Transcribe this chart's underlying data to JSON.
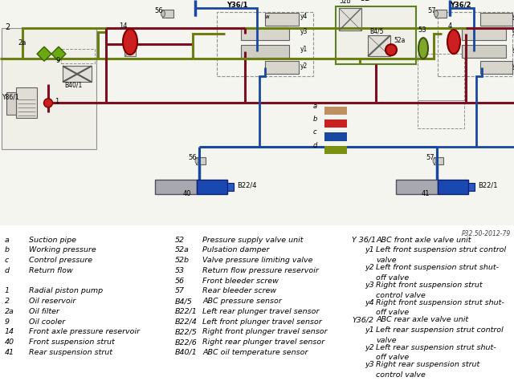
{
  "bg_color": "#ffffff",
  "title_ref": "P32.50-2012-79",
  "legend_col1_codes": [
    "a",
    "b",
    "c",
    "d",
    "",
    "1",
    "2",
    "2a",
    "9",
    "14",
    "40",
    "41"
  ],
  "legend_col1_descs": [
    "Suction pipe",
    "Working pressure",
    "Control pressure",
    "Return flow",
    "",
    "Radial piston pump",
    "Oil reservoir",
    "Oil filter",
    "Oil cooler",
    "Front axle pressure reservoir",
    "Front suspension strut",
    "Rear suspension strut"
  ],
  "legend_col2_codes": [
    "52",
    "52a",
    "52b",
    "53",
    "56",
    "57",
    "B4/5",
    "B22/1",
    "B22/4",
    "B22/5",
    "B22/6",
    "B40/1"
  ],
  "legend_col2_descs": [
    "Pressure supply valve unit",
    "Pulsation damper",
    "Valve pressure limiting valve",
    "Return flow pressure reservoir",
    "Front bleeder screw",
    "Rear bleeder screw",
    "ABC pressure sensor",
    "Left rear plunger travel sensor",
    "Left front plunger travel sensor",
    "Right front plunger travel sensor",
    "Right rear plunger travel sensor",
    "ABC oil temperature sensor"
  ],
  "legend_col3": [
    [
      "Y 36/1",
      "ABC front axle valve unit",
      false
    ],
    [
      "y1",
      "Left front suspension strut control\nvalve",
      true
    ],
    [
      "y2",
      "Left front suspension strut shut-\noff valve",
      true
    ],
    [
      "y3",
      "Right front suspension strut\ncontrol valve",
      true
    ],
    [
      "y4",
      "Right front suspension strut shut-\noff valve",
      true
    ],
    [
      "Y36/2",
      "ABC rear axle valve unit",
      false
    ],
    [
      "y1",
      "Left rear suspension strut control\nvalve",
      true
    ],
    [
      "y2",
      "Left rear suspension strut shut-\noff valve",
      true
    ],
    [
      "y3",
      "Right rear suspension strut\ncontrol valve",
      true
    ]
  ],
  "wc": "#7a1020",
  "rc": "#6b8010",
  "cc": "#1848a0",
  "sc": "#c09060",
  "red_acc": "#cc2020",
  "green_acc": "#80a828",
  "olive_line": "#7a8818"
}
